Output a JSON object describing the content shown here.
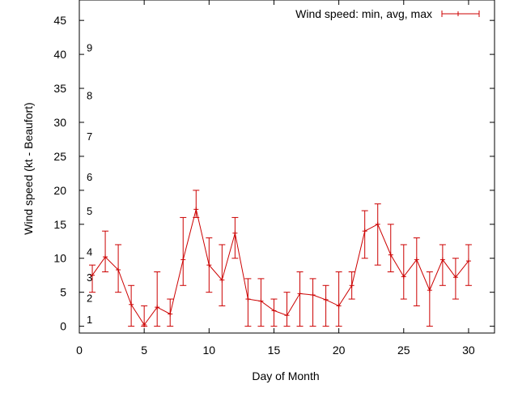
{
  "chart_data": {
    "type": "line",
    "title": "",
    "xlabel": "Day of Month",
    "ylabel": "Wind speed (kt - Beaufort)",
    "xlim": [
      0,
      32
    ],
    "ylim": [
      -1,
      48
    ],
    "xticks": [
      0,
      5,
      10,
      15,
      20,
      25,
      30
    ],
    "yticks": [
      0,
      5,
      10,
      15,
      20,
      25,
      30,
      35,
      40,
      45
    ],
    "grid": false,
    "legend_position": "top-right",
    "beaufort_labels": [
      {
        "label": "1",
        "y": 1
      },
      {
        "label": "2",
        "y": 4.2
      },
      {
        "label": "3",
        "y": 7.2
      },
      {
        "label": "4",
        "y": 11
      },
      {
        "label": "5",
        "y": 17
      },
      {
        "label": "6",
        "y": 22
      },
      {
        "label": "7",
        "y": 28
      },
      {
        "label": "8",
        "y": 34
      },
      {
        "label": "9",
        "y": 41
      }
    ],
    "series": [
      {
        "name": "Wind speed: min, avg, max",
        "color": "#cc0000",
        "x": [
          1,
          2,
          3,
          4,
          5,
          6,
          7,
          8,
          9,
          10,
          11,
          12,
          13,
          14,
          15,
          16,
          17,
          18,
          19,
          20,
          21,
          22,
          23,
          24,
          25,
          26,
          27,
          28,
          29,
          30
        ],
        "avg": [
          7.5,
          10.2,
          8.3,
          3.2,
          0.2,
          2.8,
          1.8,
          9.8,
          17.2,
          9.0,
          6.8,
          13.7,
          4.0,
          3.7,
          2.3,
          1.6,
          4.8,
          4.6,
          3.9,
          3.0,
          6.0,
          14.0,
          15.0,
          10.5,
          7.3,
          9.8,
          5.3,
          9.8,
          7.2,
          9.6
        ],
        "min": [
          5,
          8,
          5,
          0,
          0,
          0,
          0,
          6,
          16,
          5,
          3,
          10,
          0,
          0,
          0,
          0,
          0,
          0,
          0,
          0,
          4,
          10,
          9,
          8,
          4,
          3,
          0,
          6,
          4,
          6
        ],
        "max": [
          9,
          14,
          12,
          6,
          3,
          8,
          4,
          16,
          20,
          13,
          12,
          16,
          7,
          7,
          4,
          5,
          8,
          7,
          6,
          8,
          8,
          17,
          18,
          15,
          12,
          13,
          8,
          12,
          10,
          12
        ]
      }
    ]
  }
}
